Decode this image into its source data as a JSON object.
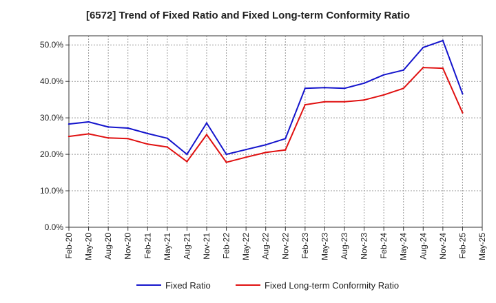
{
  "chart_data": {
    "type": "line",
    "title": "[6572]  Trend of Fixed Ratio and Fixed Long-term Conformity Ratio",
    "xlabel": "",
    "ylabel": "",
    "ylim": [
      0,
      52.5
    ],
    "y_ticks": [
      0,
      10,
      20,
      30,
      40,
      50
    ],
    "y_tick_labels": [
      "0.0%",
      "10.0%",
      "20.0%",
      "30.0%",
      "40.0%",
      "50.0%"
    ],
    "y_unit": "%",
    "grid": true,
    "grid_style": "dotted",
    "legend_position": "bottom",
    "categories": [
      "Feb-20",
      "May-20",
      "Aug-20",
      "Nov-20",
      "Feb-21",
      "May-21",
      "Aug-21",
      "Nov-21",
      "Feb-22",
      "May-22",
      "Aug-22",
      "Nov-22",
      "Feb-23",
      "May-23",
      "Aug-23",
      "Nov-23",
      "Feb-24",
      "May-24",
      "Aug-24",
      "Nov-24",
      "Feb-25",
      "May-25"
    ],
    "series": [
      {
        "name": "Fixed Ratio",
        "color": "#1414cc",
        "values": [
          28.3,
          28.9,
          27.5,
          27.2,
          25.7,
          24.4,
          20.0,
          28.6,
          20.0,
          21.3,
          22.6,
          24.3,
          38.1,
          38.3,
          38.1,
          39.5,
          41.8,
          43.1,
          49.3,
          51.2,
          36.6,
          null
        ]
      },
      {
        "name": "Fixed Long-term Conformity Ratio",
        "color": "#e01010",
        "values": [
          24.9,
          25.6,
          24.5,
          24.3,
          22.8,
          22.0,
          18.0,
          25.4,
          17.8,
          19.2,
          20.5,
          21.2,
          33.6,
          34.4,
          34.4,
          34.9,
          36.3,
          38.1,
          43.8,
          43.6,
          31.4,
          null
        ]
      }
    ]
  }
}
